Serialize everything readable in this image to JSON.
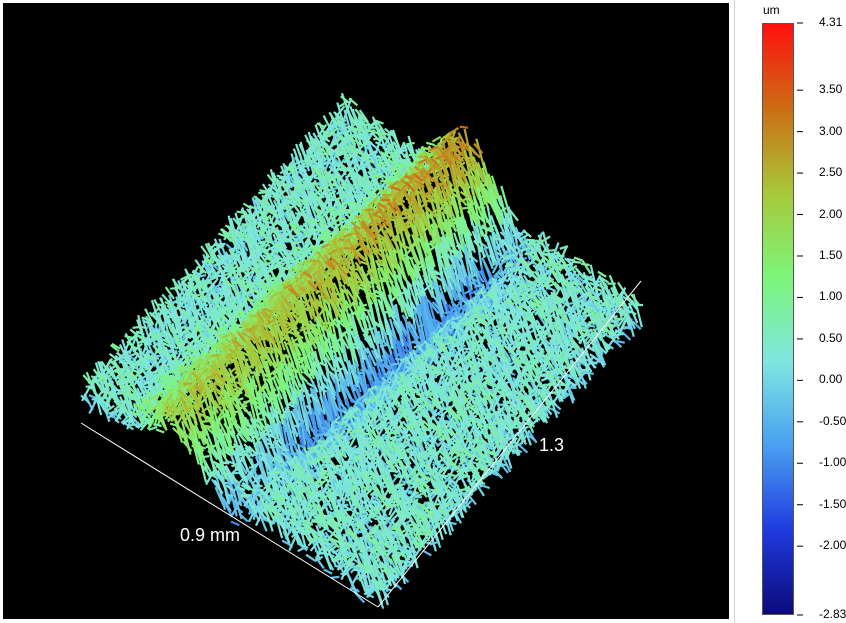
{
  "chart_data": {
    "type": "surface3d",
    "x_dimension_label": "0.9 mm",
    "y_dimension_label": "1.3",
    "colorbar": {
      "unit": "um",
      "min": -2.83,
      "max": 4.31,
      "ticks": [
        {
          "value": 4.31,
          "label": "4.31"
        },
        {
          "value": 3.5,
          "label": "3.50"
        },
        {
          "value": 3.0,
          "label": "3.00"
        },
        {
          "value": 2.5,
          "label": "2.50"
        },
        {
          "value": 2.0,
          "label": "2.00"
        },
        {
          "value": 1.5,
          "label": "1.50"
        },
        {
          "value": 1.0,
          "label": "1.00"
        },
        {
          "value": 0.5,
          "label": "0.50"
        },
        {
          "value": 0.0,
          "label": "0.00"
        },
        {
          "value": -0.5,
          "label": "-0.50"
        },
        {
          "value": -1.0,
          "label": "-1.00"
        },
        {
          "value": -1.5,
          "label": "-1.50"
        },
        {
          "value": -2.0,
          "label": "-2.00"
        },
        {
          "value": -2.83,
          "label": "-2.83"
        }
      ],
      "colors": [
        "#0b0b7a",
        "#1f3be0",
        "#4aa0f0",
        "#7fe6e0",
        "#7df57a",
        "#a8c83a",
        "#cc6d14",
        "#ff1010"
      ]
    }
  }
}
